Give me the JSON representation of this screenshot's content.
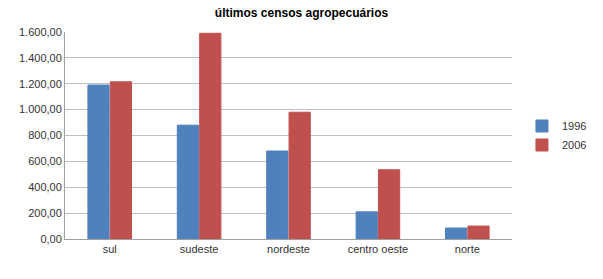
{
  "chart_data": {
    "type": "bar",
    "title": "últimos censos agropecuários",
    "categories": [
      "sul",
      "sudeste",
      "nordeste",
      "centro oeste",
      "norte"
    ],
    "series": [
      {
        "name": "1996",
        "color": "#4f81bd",
        "values": [
          1190,
          880,
          680,
          210,
          85
        ]
      },
      {
        "name": "2006",
        "color": "#c0504d",
        "values": [
          1215,
          1590,
          980,
          535,
          100
        ]
      }
    ],
    "ylim": [
      0,
      1600
    ],
    "yticks": [
      {
        "value": 0,
        "label": "0,00"
      },
      {
        "value": 200,
        "label": "200,00"
      },
      {
        "value": 400,
        "label": "400,00"
      },
      {
        "value": 600,
        "label": "600,00"
      },
      {
        "value": 800,
        "label": "800,00"
      },
      {
        "value": 1000,
        "label": "1.000,00"
      },
      {
        "value": 1200,
        "label": "1.200,00"
      },
      {
        "value": 1400,
        "label": "1.400,00"
      },
      {
        "value": 1600,
        "label": "1.600,00"
      }
    ],
    "grid": true,
    "legend": "right"
  }
}
